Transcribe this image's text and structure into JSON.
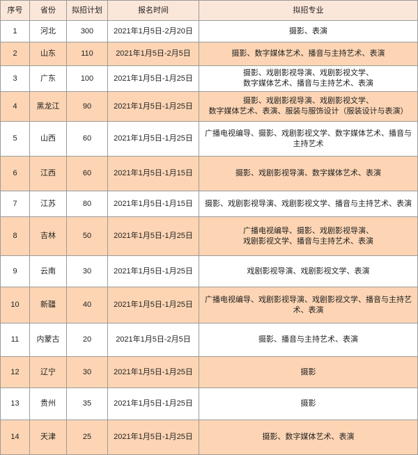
{
  "headers": [
    "序号",
    "省份",
    "拟招计划",
    "报名时间",
    "拟招专业"
  ],
  "colors": {
    "header_bg": "#fbe7da",
    "highlight_row": "#fdd5b4",
    "border": "#9a9a9a"
  },
  "rows": [
    {
      "no": "1",
      "province": "河北",
      "plan": "300",
      "period": "2021年1月5日-2月20日",
      "majors": [
        "摄影、表演"
      ]
    },
    {
      "no": "2",
      "province": "山东",
      "plan": "110",
      "period": "2021年1月5日-2月5日",
      "majors": [
        "摄影、数字媒体艺术、播音与主持艺术、表演"
      ]
    },
    {
      "no": "3",
      "province": "广东",
      "plan": "100",
      "period": "2021年1月5日-1月25日",
      "majors": [
        "摄影、戏剧影视导演、戏剧影视文学、",
        "数字媒体艺术、播音与主持艺术、表演"
      ]
    },
    {
      "no": "4",
      "province": "黑龙江",
      "plan": "90",
      "period": "2021年1月5日-1月25日",
      "majors": [
        "摄影、戏剧影视导演、戏剧影视文学、",
        "数字媒体艺术、表演、服装与服饰设计（服装设计与表演）"
      ]
    },
    {
      "no": "5",
      "province": "山西",
      "plan": "60",
      "period": "2021年1月5日-1月25日",
      "majors": [
        "广播电视编导、摄影、戏剧影视文学、数字媒体艺术、播音与主持艺术"
      ]
    },
    {
      "no": "6",
      "province": "江西",
      "plan": "60",
      "period": "2021年1月5日-1月15日",
      "majors": [
        "摄影、戏剧影视导演、数字媒体艺术、表演"
      ]
    },
    {
      "no": "7",
      "province": "江苏",
      "plan": "80",
      "period": "2021年1月5日-1月15日",
      "majors": [
        "摄影、戏剧影视导演、戏剧影视文学、播音与主持艺术、表演"
      ]
    },
    {
      "no": "8",
      "province": "吉林",
      "plan": "50",
      "period": "2021年1月5日-1月25日",
      "majors": [
        "广播电视编导、摄影、戏剧影视导演、",
        "戏剧影视文学、播音与主持艺术、表演"
      ]
    },
    {
      "no": "9",
      "province": "云南",
      "plan": "30",
      "period": "2021年1月5日-1月25日",
      "majors": [
        "戏剧影视导演、戏剧影视文学、表演"
      ]
    },
    {
      "no": "10",
      "province": "新疆",
      "plan": "40",
      "period": "2021年1月5日-1月25日",
      "majors": [
        "广播电视编导、戏剧影视导演、戏剧影视文学、播音与主持艺术、表演"
      ]
    },
    {
      "no": "11",
      "province": "内蒙古",
      "plan": "20",
      "period": "2021年1月5日-2月5日",
      "majors": [
        "摄影、播音与主持艺术、表演"
      ]
    },
    {
      "no": "12",
      "province": "辽宁",
      "plan": "30",
      "period": "2021年1月5日-1月25日",
      "majors": [
        "摄影"
      ]
    },
    {
      "no": "13",
      "province": "贵州",
      "plan": "35",
      "period": "2021年1月5日-1月25日",
      "majors": [
        "摄影"
      ]
    },
    {
      "no": "14",
      "province": "天津",
      "plan": "25",
      "period": "2021年1月5日-1月25日",
      "majors": [
        "摄影、数字媒体艺术、表演"
      ]
    }
  ]
}
